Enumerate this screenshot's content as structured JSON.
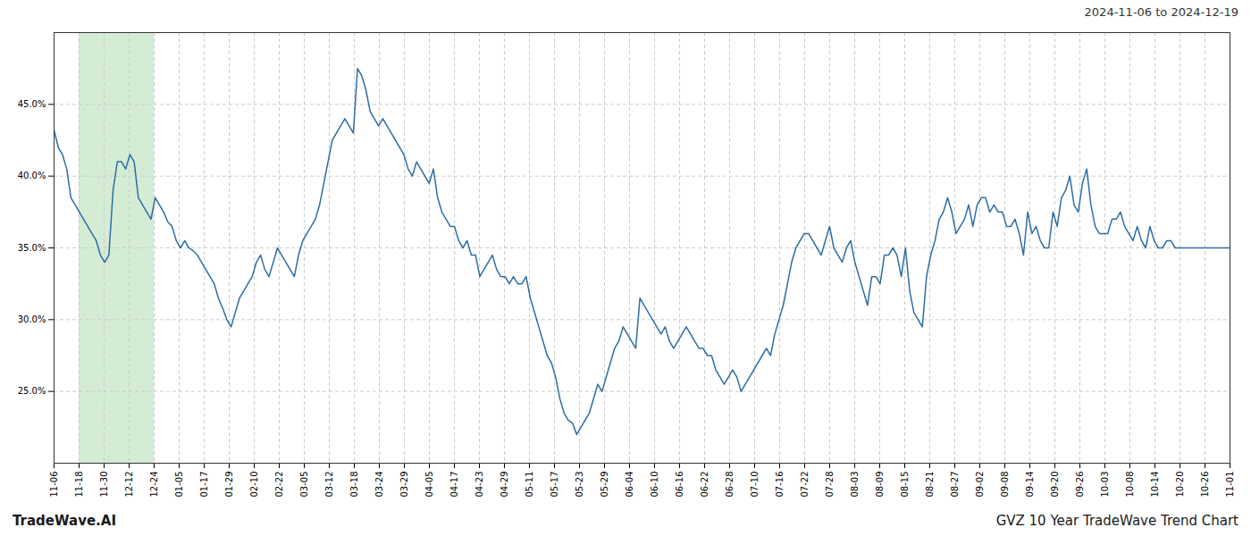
{
  "chart_data": {
    "type": "line",
    "title": "GVZ 10 Year TradeWave Trend Chart",
    "subtitle": "2024-11-06 to 2024-12-19",
    "annotations": [
      "TradeWave.AI"
    ],
    "color": "#2e6da4",
    "grid": true,
    "highlight": {
      "start": "11-18",
      "end": "12-24",
      "color": "#d4ecd4"
    },
    "xlim": [
      0,
      279
    ],
    "xticks": [
      {
        "value": 0,
        "label": "11-06"
      },
      {
        "value": 5.936,
        "label": "11-18"
      },
      {
        "value": 11.872,
        "label": "11-30"
      },
      {
        "value": 17.809,
        "label": "12-12"
      },
      {
        "value": 23.745,
        "label": "12-24"
      },
      {
        "value": 29.681,
        "label": "01-05"
      },
      {
        "value": 35.617,
        "label": "01-17"
      },
      {
        "value": 41.553,
        "label": "01-29"
      },
      {
        "value": 47.489,
        "label": "02-10"
      },
      {
        "value": 53.426,
        "label": "02-22"
      },
      {
        "value": 59.362,
        "label": "03-05"
      },
      {
        "value": 65.298,
        "label": "03-12"
      },
      {
        "value": 71.234,
        "label": "03-18"
      },
      {
        "value": 77.17,
        "label": "03-24"
      },
      {
        "value": 83.106,
        "label": "03-29"
      },
      {
        "value": 89.043,
        "label": "04-05"
      },
      {
        "value": 94.979,
        "label": "04-17"
      },
      {
        "value": 100.915,
        "label": "04-23"
      },
      {
        "value": 106.851,
        "label": "04-29"
      },
      {
        "value": 112.787,
        "label": "05-11"
      },
      {
        "value": 118.723,
        "label": "05-17"
      },
      {
        "value": 124.66,
        "label": "05-23"
      },
      {
        "value": 130.596,
        "label": "05-29"
      },
      {
        "value": 136.532,
        "label": "06-04"
      },
      {
        "value": 142.468,
        "label": "06-10"
      },
      {
        "value": 148.404,
        "label": "06-16"
      },
      {
        "value": 154.34,
        "label": "06-22"
      },
      {
        "value": 160.277,
        "label": "06-28"
      },
      {
        "value": 166.213,
        "label": "07-10"
      },
      {
        "value": 172.149,
        "label": "07-16"
      },
      {
        "value": 178.085,
        "label": "07-22"
      },
      {
        "value": 184.021,
        "label": "07-28"
      },
      {
        "value": 189.957,
        "label": "08-03"
      },
      {
        "value": 195.894,
        "label": "08-09"
      },
      {
        "value": 201.83,
        "label": "08-15"
      },
      {
        "value": 207.766,
        "label": "08-21"
      },
      {
        "value": 213.702,
        "label": "08-27"
      },
      {
        "value": 219.638,
        "label": "09-02"
      },
      {
        "value": 225.574,
        "label": "09-08"
      },
      {
        "value": 231.511,
        "label": "09-14"
      },
      {
        "value": 237.447,
        "label": "09-20"
      },
      {
        "value": 243.383,
        "label": "09-26"
      },
      {
        "value": 249.319,
        "label": "10-03"
      },
      {
        "value": 255.255,
        "label": "10-08"
      },
      {
        "value": 261.191,
        "label": "10-14"
      },
      {
        "value": 267.128,
        "label": "10-20"
      },
      {
        "value": 273.064,
        "label": "10-26"
      },
      {
        "value": 279,
        "label": "11-01"
      }
    ],
    "ylim": [
      20.0,
      50.0
    ],
    "yticks": [
      {
        "value": 25.0,
        "label": "25.0%"
      },
      {
        "value": 30.0,
        "label": "30.0%"
      },
      {
        "value": 35.0,
        "label": "35.0%"
      },
      {
        "value": 40.0,
        "label": "40.0%"
      },
      {
        "value": 45.0,
        "label": "45.0%"
      }
    ],
    "values": [
      43.2,
      42.0,
      41.5,
      40.5,
      38.5,
      38.0,
      37.5,
      37.0,
      36.5,
      36.0,
      35.5,
      34.5,
      34.0,
      34.5,
      39.0,
      41.0,
      41.0,
      40.5,
      41.5,
      41.0,
      38.5,
      38.0,
      37.5,
      37.0,
      38.5,
      38.0,
      37.5,
      36.8,
      36.5,
      35.5,
      35.0,
      35.5,
      35.0,
      34.8,
      34.5,
      34.0,
      33.5,
      33.0,
      32.5,
      31.5,
      30.8,
      30.0,
      29.5,
      30.5,
      31.5,
      32.0,
      32.5,
      33.0,
      34.0,
      34.5,
      33.5,
      33.0,
      34.0,
      35.0,
      34.5,
      34.0,
      33.5,
      33.0,
      34.5,
      35.5,
      36.0,
      36.5,
      37.0,
      38.0,
      39.5,
      41.0,
      42.5,
      43.0,
      43.5,
      44.0,
      43.5,
      43.0,
      47.5,
      47.0,
      46.0,
      44.5,
      44.0,
      43.5,
      44.0,
      43.5,
      43.0,
      42.5,
      42.0,
      41.5,
      40.5,
      40.0,
      41.0,
      40.5,
      40.0,
      39.5,
      40.5,
      38.5,
      37.5,
      37.0,
      36.5,
      36.5,
      35.5,
      35.0,
      35.5,
      34.5,
      34.5,
      33.0,
      33.5,
      34.0,
      34.5,
      33.5,
      33.0,
      33.0,
      32.5,
      33.0,
      32.5,
      32.5,
      33.0,
      31.5,
      30.5,
      29.5,
      28.5,
      27.5,
      27.0,
      26.0,
      24.5,
      23.5,
      23.0,
      22.8,
      22.0,
      22.5,
      23.0,
      23.5,
      24.5,
      25.5,
      25.0,
      26.0,
      27.0,
      28.0,
      28.5,
      29.5,
      29.0,
      28.5,
      28.0,
      31.5,
      31.0,
      30.5,
      30.0,
      29.5,
      29.0,
      29.5,
      28.5,
      28.0,
      28.5,
      29.0,
      29.5,
      29.0,
      28.5,
      28.0,
      28.0,
      27.5,
      27.5,
      26.5,
      26.0,
      25.5,
      26.0,
      26.5,
      26.0,
      25.0,
      25.5,
      26.0,
      26.5,
      27.0,
      27.5,
      28.0,
      27.5,
      29.0,
      30.0,
      31.0,
      32.5,
      34.0,
      35.0,
      35.5,
      36.0,
      36.0,
      35.5,
      35.0,
      34.5,
      35.5,
      36.5,
      35.0,
      34.5,
      34.0,
      35.0,
      35.5,
      34.0,
      33.0,
      32.0,
      31.0,
      33.0,
      33.0,
      32.5,
      34.5,
      34.5,
      35.0,
      34.5,
      33.0,
      35.0,
      32.0,
      30.5,
      30.0,
      29.5,
      33.0,
      34.5,
      35.5,
      37.0,
      37.5,
      38.5,
      37.5,
      36.0,
      36.5,
      37.0,
      38.0,
      36.5,
      38.0,
      38.5,
      38.5,
      37.5,
      38.0,
      37.5,
      37.5,
      36.5,
      36.5,
      37.0,
      36.0,
      34.5,
      37.5,
      36.0,
      36.5,
      35.5,
      35.0,
      35.0,
      37.5,
      36.5,
      38.5,
      39.0,
      40.0,
      38.0,
      37.5,
      39.5,
      40.5,
      38.0,
      36.5,
      36.0,
      36.0,
      36.0,
      37.0,
      37.0,
      37.5,
      36.5,
      36.0,
      35.5,
      36.5,
      35.5,
      35.0,
      36.5,
      35.5,
      35.0,
      35.0,
      35.5,
      35.5,
      35.0,
      35.0,
      35.0,
      35.0,
      35.0,
      35.0,
      35.0,
      35.0,
      35.0,
      35.0,
      35.0,
      35.0,
      35.0,
      35.0
    ]
  }
}
